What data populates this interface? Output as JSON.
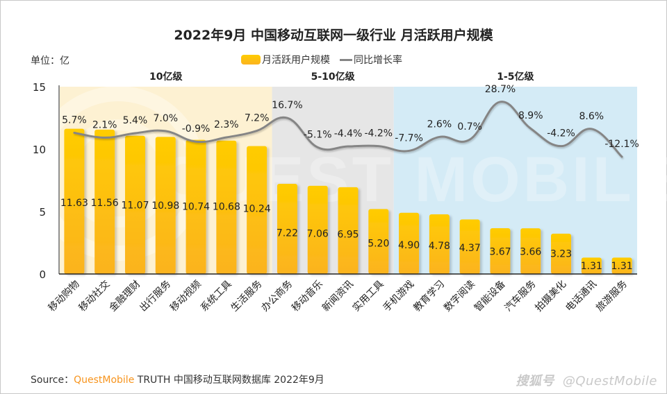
{
  "title": "2022年9月 中国移动互联网一级行业 月活跃用户规模",
  "unit_label": "单位：亿",
  "legend": {
    "bar_label": "月活跃用户规模",
    "line_label": "同比增长率"
  },
  "source": {
    "prefix": "Source：",
    "brand": "QuestMobile",
    "suffix": " TRUTH 中国移动互联网数据库 2022年9月"
  },
  "watermark": {
    "platform": "搜狐号",
    "handle": "@QuestMobile",
    "background_text": "QUEST MOBILE"
  },
  "colors": {
    "bar_top": "#ffcc00",
    "bar_bottom": "#fbb320",
    "line": "#858585",
    "band_tier1": "#fdf1d2",
    "band_tier2": "#e6e6e6",
    "band_tier3": "#d4ebf6"
  },
  "chart_data": {
    "type": "bar",
    "title": "2022年9月 中国移动互联网一级行业 月活跃用户规模",
    "xlabel": "",
    "ylabel": "单位：亿",
    "ylim": [
      0,
      15
    ],
    "yticks": [
      0,
      5,
      10,
      15
    ],
    "grid": false,
    "legend_position": "top-center",
    "categories": [
      "移动购物",
      "移动社交",
      "金融理财",
      "出行服务",
      "移动视频",
      "系统工具",
      "生活服务",
      "办公商务",
      "移动音乐",
      "新闻资讯",
      "实用工具",
      "手机游戏",
      "教育学习",
      "数字阅读",
      "智能设备",
      "汽车服务",
      "拍摄美化",
      "电话通讯",
      "旅游服务"
    ],
    "tiers": [
      {
        "label": "10亿级",
        "start": 0,
        "end": 6
      },
      {
        "label": "5-10亿级",
        "start": 7,
        "end": 10
      },
      {
        "label": "1-5亿级",
        "start": 11,
        "end": 18
      }
    ],
    "series": [
      {
        "name": "月活跃用户规模",
        "type": "bar",
        "unit": "亿",
        "values": [
          11.63,
          11.56,
          11.07,
          10.98,
          10.74,
          10.68,
          10.24,
          7.22,
          7.06,
          6.95,
          5.2,
          4.9,
          4.78,
          4.37,
          3.67,
          3.66,
          3.23,
          1.31,
          1.31
        ],
        "labels": [
          "11.63",
          "11.56",
          "11.07",
          "10.98",
          "10.74",
          "10.68",
          "10.24",
          "7.22",
          "7.06",
          "6.95",
          "5.20",
          "4.90",
          "4.78",
          "4.37",
          "3.67",
          "3.66",
          "3.23",
          "1.31",
          "1.31"
        ]
      },
      {
        "name": "同比增长率",
        "type": "line",
        "unit": "%",
        "values": [
          5.7,
          2.1,
          5.4,
          7.0,
          -0.9,
          2.3,
          7.2,
          16.7,
          -5.1,
          -4.4,
          -4.2,
          -7.7,
          2.6,
          0.7,
          28.7,
          8.9,
          -4.2,
          8.6,
          -12.1
        ],
        "labels": [
          "5.7%",
          "2.1%",
          "5.4%",
          "7.0%",
          "-0.9%",
          "2.3%",
          "7.2%",
          "16.7%",
          "-5.1%",
          "-4.4%",
          "-4.2%",
          "-7.7%",
          "2.6%",
          "0.7%",
          "28.7%",
          "8.9%",
          "-4.2%",
          "8.6%",
          "-12.1%"
        ]
      }
    ]
  }
}
